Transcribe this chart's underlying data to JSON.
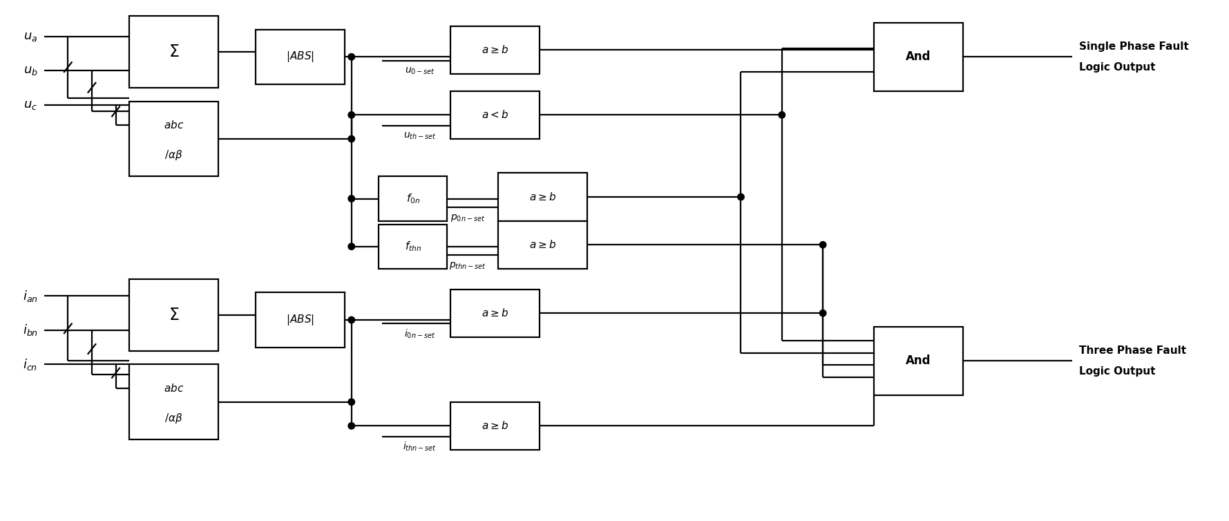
{
  "bg": "#ffffff",
  "lc": "#000000",
  "figsize": [
    17.79,
    7.54
  ],
  "dpi": 100,
  "labels_top": [
    "$u_a$",
    "$u_b$",
    "$u_c$"
  ],
  "labels_bot": [
    "$i_{an}$",
    "$i_{bn}$",
    "$i_{cn}$"
  ],
  "sigma_label": "$\\Sigma$",
  "abs_label": "$|ABS|$",
  "abc_label1": "$abc$",
  "abc_label2": "$/\\alpha\\beta$",
  "f0n_label": "$f_{0n}$",
  "fthn_label": "$f_{thn}$",
  "ageb_label": "$a \\geq b$",
  "altb_label": "$a < b$",
  "and_label": "And",
  "u0set_label": "$u_{0-set}$",
  "uthset_label": "$u_{th-set}$",
  "p0nset_label": "$p_{0n-set}$",
  "pthnset_label": "$p_{thn-set}$",
  "i0nset_label": "$i_{0n-set}$",
  "ithnset_label": "$i_{thn-set}$",
  "out1_line1": "Single Phase Fault",
  "out1_line2": "Logic Output",
  "out2_line1": "Three Phase Fault",
  "out2_line2": "Logic Output"
}
